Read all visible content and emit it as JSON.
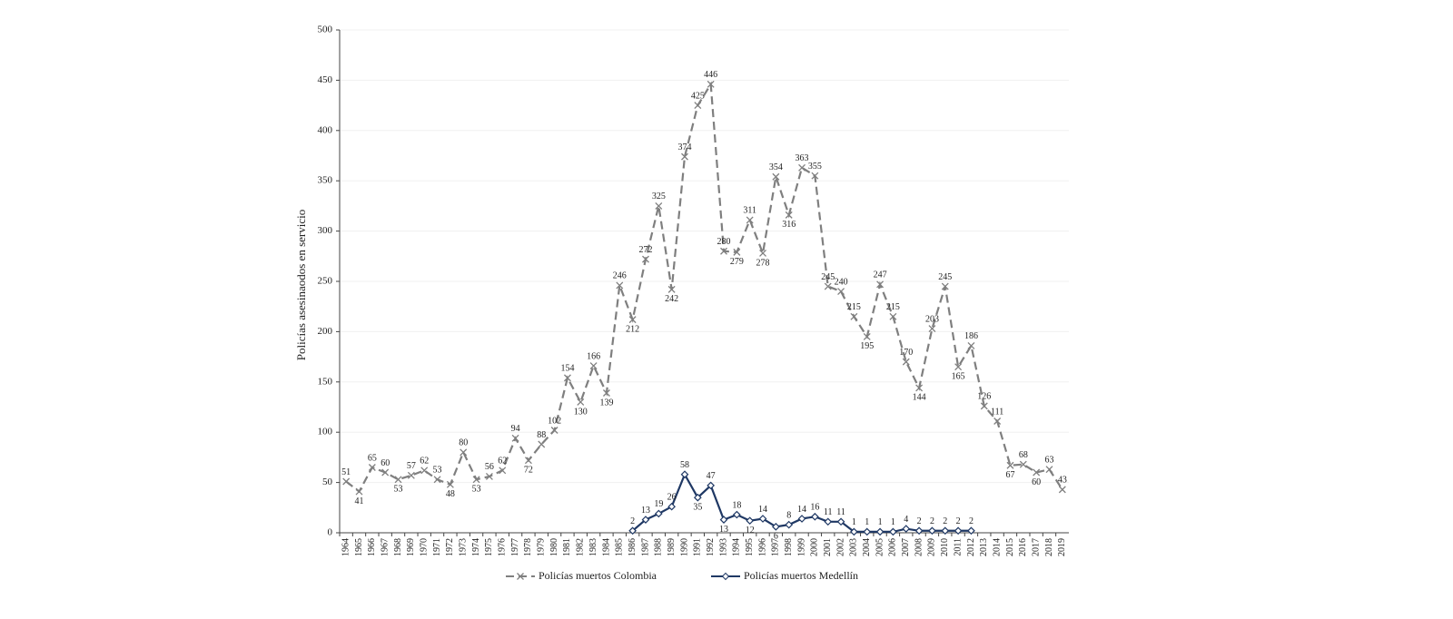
{
  "chart_data": {
    "type": "line",
    "y_label": "Policías asesinaodos en servicio",
    "categories": [
      "1964",
      "1965",
      "1966",
      "1967",
      "1968",
      "1969",
      "1970",
      "1971",
      "1972",
      "1973",
      "1974",
      "1975",
      "1976",
      "1977",
      "1978",
      "1979",
      "1980",
      "1981",
      "1982",
      "1983",
      "1984",
      "1985",
      "1986",
      "1987",
      "1988",
      "1989",
      "1990",
      "1991",
      "1992",
      "1993",
      "1994",
      "1995",
      "1996",
      "1997",
      "1998",
      "1999",
      "2000",
      "2001",
      "2002",
      "2003",
      "2004",
      "2005",
      "2006",
      "2007",
      "2008",
      "2009",
      "2010",
      "2011",
      "2012",
      "2013",
      "2014",
      "2015",
      "2016",
      "2017",
      "2018",
      "2019"
    ],
    "series": [
      {
        "name": "Policías muertos Colombia",
        "color": "#7f7f7f",
        "dashed": true,
        "marker": "x",
        "values": [
          51,
          41,
          65,
          60,
          53,
          57,
          62,
          53,
          48,
          80,
          53,
          56,
          62,
          94,
          72,
          88,
          102,
          154,
          130,
          166,
          139,
          246,
          212,
          272,
          325,
          242,
          374,
          425,
          446,
          280,
          279,
          311,
          278,
          354,
          316,
          363,
          355,
          245,
          240,
          215,
          195,
          247,
          215,
          170,
          144,
          203,
          245,
          165,
          186,
          126,
          111,
          67,
          68,
          60,
          63,
          43
        ]
      },
      {
        "name": "Policías muertos Medellín",
        "color": "#1f3864",
        "dashed": false,
        "marker": "diamond",
        "values": [
          null,
          null,
          null,
          null,
          null,
          null,
          null,
          null,
          null,
          null,
          null,
          null,
          null,
          null,
          null,
          null,
          null,
          null,
          null,
          null,
          null,
          null,
          2,
          13,
          19,
          26,
          58,
          35,
          47,
          13,
          18,
          12,
          14,
          6,
          8,
          14,
          16,
          11,
          11,
          1,
          1,
          1,
          1,
          4,
          2,
          2,
          2,
          2,
          2,
          null,
          null,
          null,
          null,
          null,
          null,
          null
        ]
      }
    ],
    "ylim": [
      0,
      500
    ],
    "yticks": [
      0,
      50,
      100,
      150,
      200,
      250,
      300,
      350,
      400,
      450,
      500
    ],
    "grid": true,
    "legend": "bottom"
  }
}
